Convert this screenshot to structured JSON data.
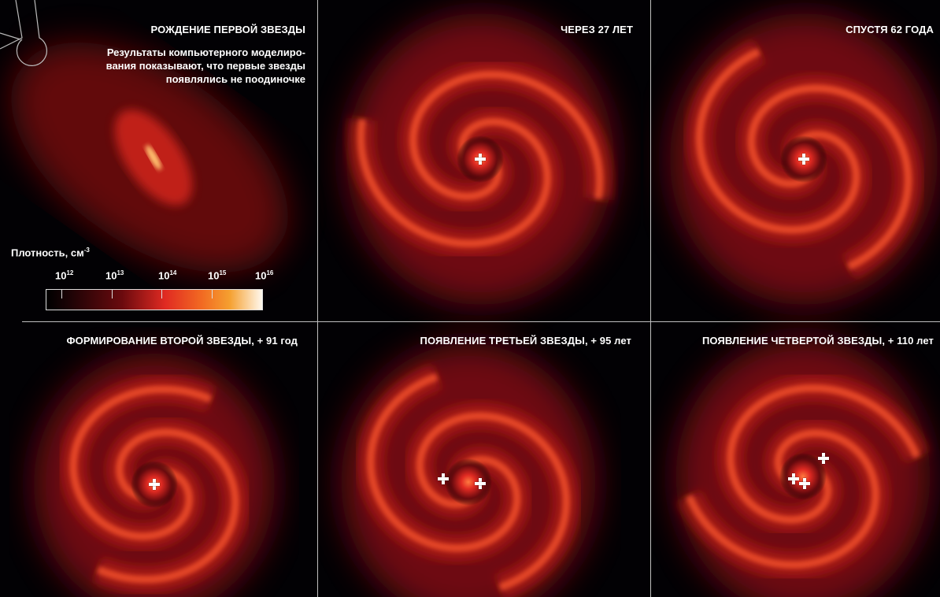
{
  "panels": [
    {
      "title": "РОЖДЕНИЕ ПЕРВОЙ ЗВЕЗДЫ",
      "lead": "Результаты компьютерного моделиро-вания показывают, что первые звезды появлялись не поодиночке",
      "stars": 0
    },
    {
      "title": "ЧЕРЕЗ 27 ЛЕТ",
      "stars": 1
    },
    {
      "title": "СПУСТЯ 62 ГОДА",
      "stars": 1
    },
    {
      "title": "ФОРМИРОВАНИЕ ВТОРОЙ ЗВЕЗДЫ, + 91 год",
      "stars": 1
    },
    {
      "title": "ПОЯВЛЕНИЕ ТРЕТЬЕЙ ЗВЕЗДЫ, + 95 лет",
      "stars": 2
    },
    {
      "title": "ПОЯВЛЕНИЕ ЧЕТВЕРТОЙ ЗВЕЗДЫ, + 110 лет",
      "stars": 3
    }
  ],
  "legend": {
    "title": "Плотность, см",
    "title_exp": "-3",
    "ticks": [
      {
        "base": "10",
        "exp": "12"
      },
      {
        "base": "10",
        "exp": "13"
      },
      {
        "base": "10",
        "exp": "14"
      },
      {
        "base": "10",
        "exp": "15"
      },
      {
        "base": "10",
        "exp": "16"
      }
    ],
    "colors": [
      "#000000",
      "#6a0a0e",
      "#e02a22",
      "#f26a22",
      "#f5a030",
      "#fff8ee"
    ]
  },
  "icons": [
    "star-position-cross-icon",
    "probe-outline-icon"
  ]
}
